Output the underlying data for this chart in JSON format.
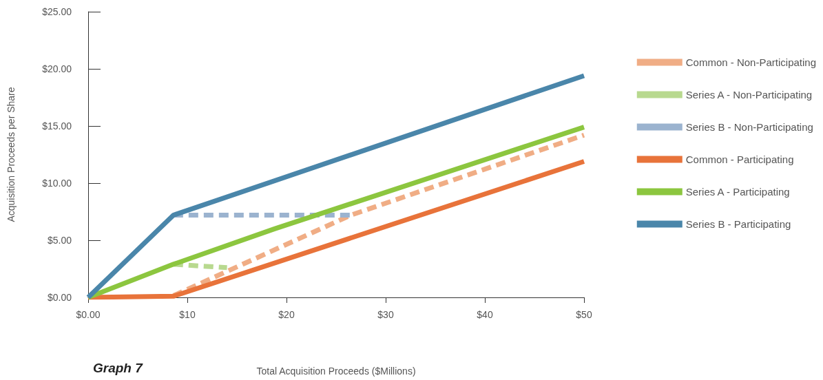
{
  "chart_data": {
    "type": "line",
    "title": "Graph 7",
    "xlabel": "Total Acquisition Proceeds ($Millions)",
    "ylabel": "Acquisition Proceeds per Share",
    "xlim": [
      0,
      50
    ],
    "xticks": [
      {
        "value": 0,
        "label": "$0.00"
      },
      {
        "value": 10,
        "label": "$10"
      },
      {
        "value": 20,
        "label": "$20"
      },
      {
        "value": 30,
        "label": "$30"
      },
      {
        "value": 40,
        "label": "$40"
      },
      {
        "value": 50,
        "label": "$50"
      }
    ],
    "ylim": [
      0,
      25
    ],
    "yticks": [
      {
        "value": 0,
        "label": "$0.00"
      },
      {
        "value": 5,
        "label": "$5.00"
      },
      {
        "value": 10,
        "label": "$10.00"
      },
      {
        "value": 15,
        "label": "$15.00"
      },
      {
        "value": 20,
        "label": "$20.00"
      },
      {
        "value": 25,
        "label": "$25.00"
      }
    ],
    "grid": false,
    "legend": "right",
    "marker": "none",
    "series": [
      {
        "name": "Common - Non-Participating",
        "color": "#f0ad85",
        "line_style": "dashed",
        "x": [
          8.6,
          26.5,
          50
        ],
        "values": [
          0.15,
          7.2,
          14.2
        ]
      },
      {
        "name": "Series A - Non-Participating",
        "color": "#b8d98f",
        "line_style": "dashed",
        "x": [
          8.6,
          14
        ],
        "values": [
          2.9,
          2.6
        ]
      },
      {
        "name": "Series B - Non-Participating",
        "color": "#9bb3cf",
        "line_style": "dashed",
        "x": [
          8.6,
          26.8
        ],
        "values": [
          7.2,
          7.2
        ]
      },
      {
        "name": "Common - Participating",
        "color": "#e8733a",
        "line_style": "solid",
        "x": [
          0,
          8.6,
          50
        ],
        "values": [
          0,
          0.1,
          11.9
        ]
      },
      {
        "name": "Series A - Participating",
        "color": "#8cc63f",
        "line_style": "solid",
        "x": [
          0,
          8.6,
          18.8,
          50
        ],
        "values": [
          0,
          2.9,
          6.0,
          14.9
        ]
      },
      {
        "name": "Series B - Participating",
        "color": "#4a86aa",
        "line_style": "solid",
        "x": [
          0,
          8.6,
          50
        ],
        "values": [
          0,
          7.2,
          19.4
        ]
      }
    ]
  }
}
